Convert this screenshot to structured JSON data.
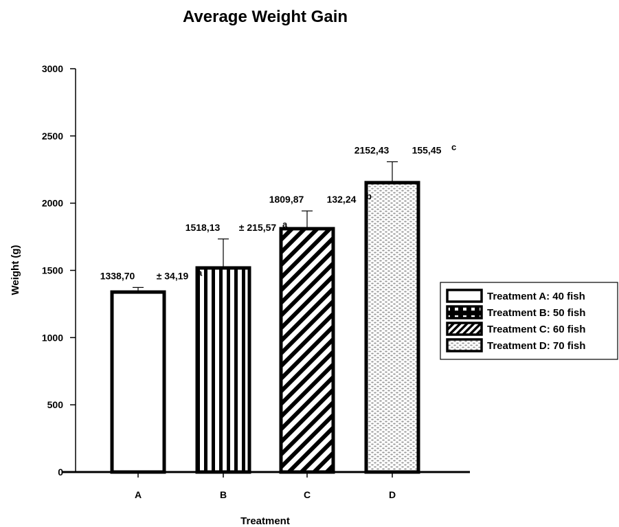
{
  "chart_data": {
    "type": "bar",
    "title": "Average Weight Gain",
    "xlabel": "Treatment",
    "ylabel": "Weight (g)",
    "ylim": [
      0,
      3000
    ],
    "yticks": [
      0,
      500,
      1000,
      1500,
      2000,
      2500,
      3000
    ],
    "categories": [
      "A",
      "B",
      "C",
      "D"
    ],
    "values": [
      1338.7,
      1518.13,
      1809.87,
      2152.43
    ],
    "errors": [
      34.19,
      215.57,
      132.24,
      155.45
    ],
    "value_labels": [
      "1338,70",
      "1518,13",
      "1809,87",
      "2152,43"
    ],
    "error_labels": [
      "± 34,19",
      "± 215,57",
      "132,24",
      "155,45"
    ],
    "significance": [
      "a",
      "a",
      "b",
      "c"
    ],
    "patterns": [
      "white",
      "vertical-stripes",
      "diagonal-stripes",
      "speckled"
    ],
    "legend": {
      "position": "right",
      "entries": [
        "Treatment A: 40 fish",
        "Treatment B: 50 fish",
        "Treatment C: 60 fish",
        "Treatment D: 70 fish"
      ],
      "patterns": [
        "white",
        "squares",
        "diagonal-stripes",
        "speckled"
      ]
    },
    "grid": false,
    "colors": {
      "bar_outline": "#000000",
      "fill": "#ffffff",
      "speckle": "#9a9a9a"
    }
  }
}
